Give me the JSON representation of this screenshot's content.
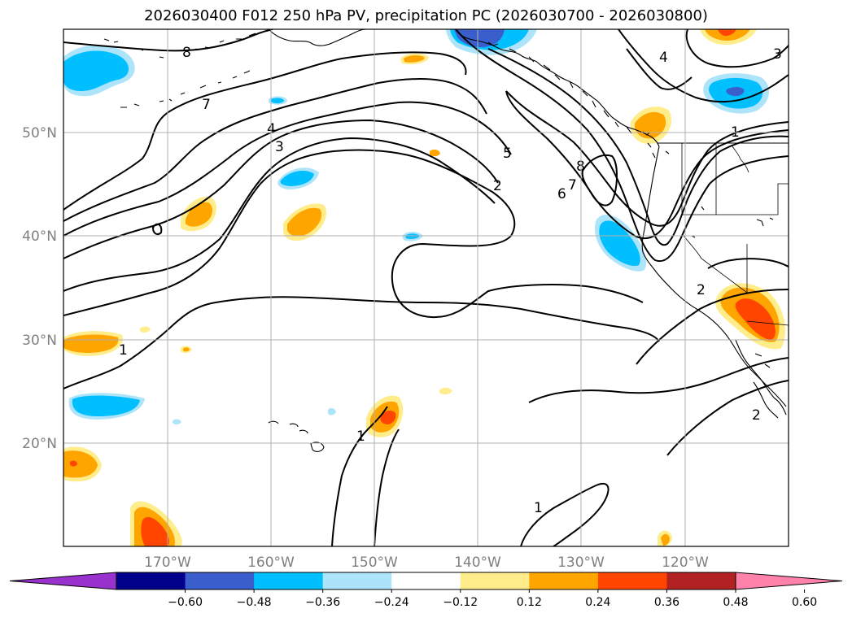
{
  "title": "2026030400 F012 250 hPa PV, precipitation PC (2026030700 - 2026030800)",
  "axes": {
    "lon_labels": [
      "170°W",
      "160°W",
      "150°W",
      "140°W",
      "130°W",
      "120°W"
    ],
    "lat_labels": [
      "50°N",
      "40°N",
      "30°N",
      "20°N"
    ]
  },
  "pv_contour_labels": [
    "8",
    "7",
    "4",
    "3",
    "5",
    "2",
    "6",
    "7",
    "8",
    "4",
    "3",
    "1",
    "2",
    "1",
    "1",
    "1",
    "2"
  ],
  "colorbar": {
    "colors": [
      "#9932CC",
      "#00008B",
      "#3A5FCD",
      "#00BFFF",
      "#AEE4FA",
      "#FFFFFF",
      "#FFEC8B",
      "#FFA500",
      "#FF4500",
      "#B22222",
      "#FF82AB"
    ],
    "tick_labels": [
      "−0.60",
      "−0.48",
      "−0.36",
      "−0.24",
      "−0.12",
      "0.12",
      "0.24",
      "0.36",
      "0.48",
      "0.60"
    ]
  }
}
